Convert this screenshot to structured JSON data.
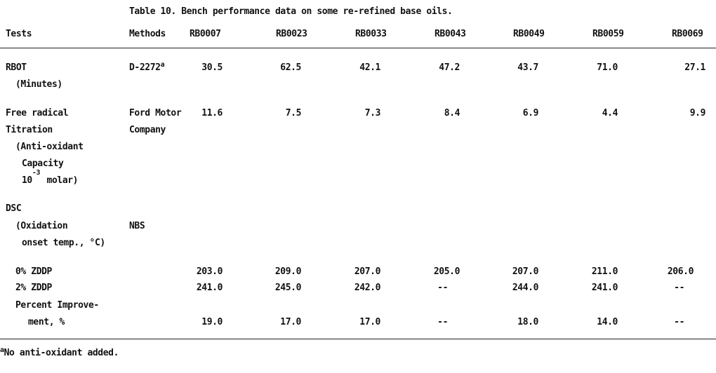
{
  "table": {
    "title": "Table 10.  Bench performance data on some re-refined base oils.",
    "headers": [
      "Tests",
      "Methods",
      "RB0007",
      "RB0023",
      "RB0033",
      "RB0043",
      "RB0049",
      "RB0059",
      "RB0069"
    ],
    "rbot": {
      "test_line1": "RBOT",
      "test_line2": "(Minutes)",
      "method": "D-2272",
      "method_sup": "a",
      "values": [
        "30.5",
        "62.5",
        "42.1",
        "47.2",
        "43.7",
        "71.0",
        "27.1"
      ]
    },
    "free_radical": {
      "test_line1": "Free radical",
      "test_line2": "Titration",
      "test_line3": "(Anti-oxidant",
      "test_line4": "Capacity",
      "test_line5_base": "10",
      "test_line5_exp": "-3",
      "test_line5_rest": "molar)",
      "method_line1": "Ford Motor",
      "method_line2": "Company",
      "values": [
        "11.6",
        "7.5",
        "7.3",
        "8.4",
        "6.9",
        "4.4",
        "9.9"
      ]
    },
    "dsc": {
      "test_line1": "DSC",
      "test_line2": "(Oxidation",
      "test_line3": "onset temp., °C)",
      "method": "NBS",
      "rows": [
        {
          "label": "0% ZDDP",
          "values": [
            "203.0",
            "209.0",
            "207.0",
            "205.0",
            "207.0",
            "211.0",
            "206.0"
          ]
        },
        {
          "label": "2% ZDDP",
          "values": [
            "241.0",
            "245.0",
            "242.0",
            "--",
            "244.0",
            "241.0",
            "--"
          ]
        },
        {
          "label_line1": "Percent Improve-",
          "label": "ment, %",
          "values": [
            "19.0",
            "17.0",
            "17.0",
            "--",
            "18.0",
            "14.0",
            "--"
          ]
        }
      ]
    },
    "footnote_sup": "a",
    "footnote": "No anti-oxidant added."
  }
}
